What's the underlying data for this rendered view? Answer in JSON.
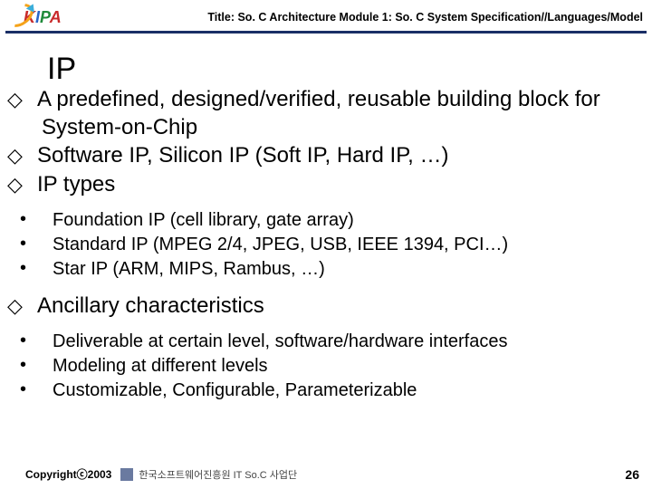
{
  "header": {
    "logo_text": {
      "k": "K",
      "i": "I",
      "p": "P",
      "a": "A"
    },
    "title": "Title: So. C Architecture  Module 1: So. C System Specification//Languages/Model"
  },
  "slide": {
    "heading": "IP",
    "lvl1": [
      "A predefined, designed/verified, reusable building block for System-on-Chip",
      "Software IP, Silicon IP (Soft IP, Hard IP, …)",
      "IP types"
    ],
    "lvl2_a": [
      "Foundation IP (cell library, gate array)",
      "Standard IP (MPEG 2/4, JPEG, USB, IEEE 1394, PCI…)",
      "Star IP (ARM, MIPS, Rambus, …)"
    ],
    "lvl1b": [
      "Ancillary characteristics"
    ],
    "lvl2_b": [
      "Deliverable at certain level, software/hardware interfaces",
      "Modeling at different levels",
      "Customizable, Configurable, Parameterizable"
    ]
  },
  "footer": {
    "copyright": "Copyrightⓒ2003",
    "org": "한국소프트웨어진흥원  IT So.C 사업단",
    "page": "26"
  },
  "colors": {
    "rule": "#1a2f66",
    "text": "#000000",
    "bg": "#ffffff"
  }
}
